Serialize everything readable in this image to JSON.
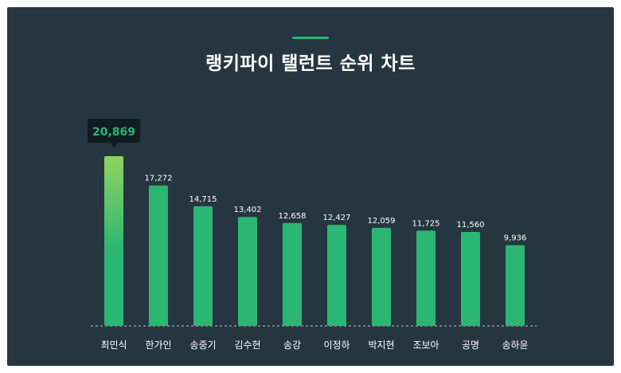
{
  "title": "랭키파이 탤런트 순위 차트",
  "colors": {
    "background": "#263641",
    "bar": "#2bb673",
    "bar_highlight_top": "#8fd460",
    "accent_line": "#2bb673",
    "tooltip_bg": "#101b22",
    "tooltip_text": "#2bb673",
    "label_text": "#ffffff"
  },
  "chart_data": {
    "type": "bar",
    "title": "랭키파이 탤런트 순위 차트",
    "categories": [
      "최민식",
      "한가인",
      "송중기",
      "김수현",
      "송강",
      "이정하",
      "박지현",
      "조보아",
      "공명",
      "송하윤"
    ],
    "values": [
      20869,
      17272,
      14715,
      13402,
      12658,
      12427,
      12059,
      11725,
      11560,
      9936
    ],
    "value_labels": [
      "20,869",
      "17,272",
      "14,715",
      "13,402",
      "12,658",
      "12,427",
      "12,059",
      "11,725",
      "11,560",
      "9,936"
    ],
    "ylim": [
      0,
      20869
    ],
    "grid": false,
    "baseline": "dashed",
    "highlighted_index": 0
  }
}
